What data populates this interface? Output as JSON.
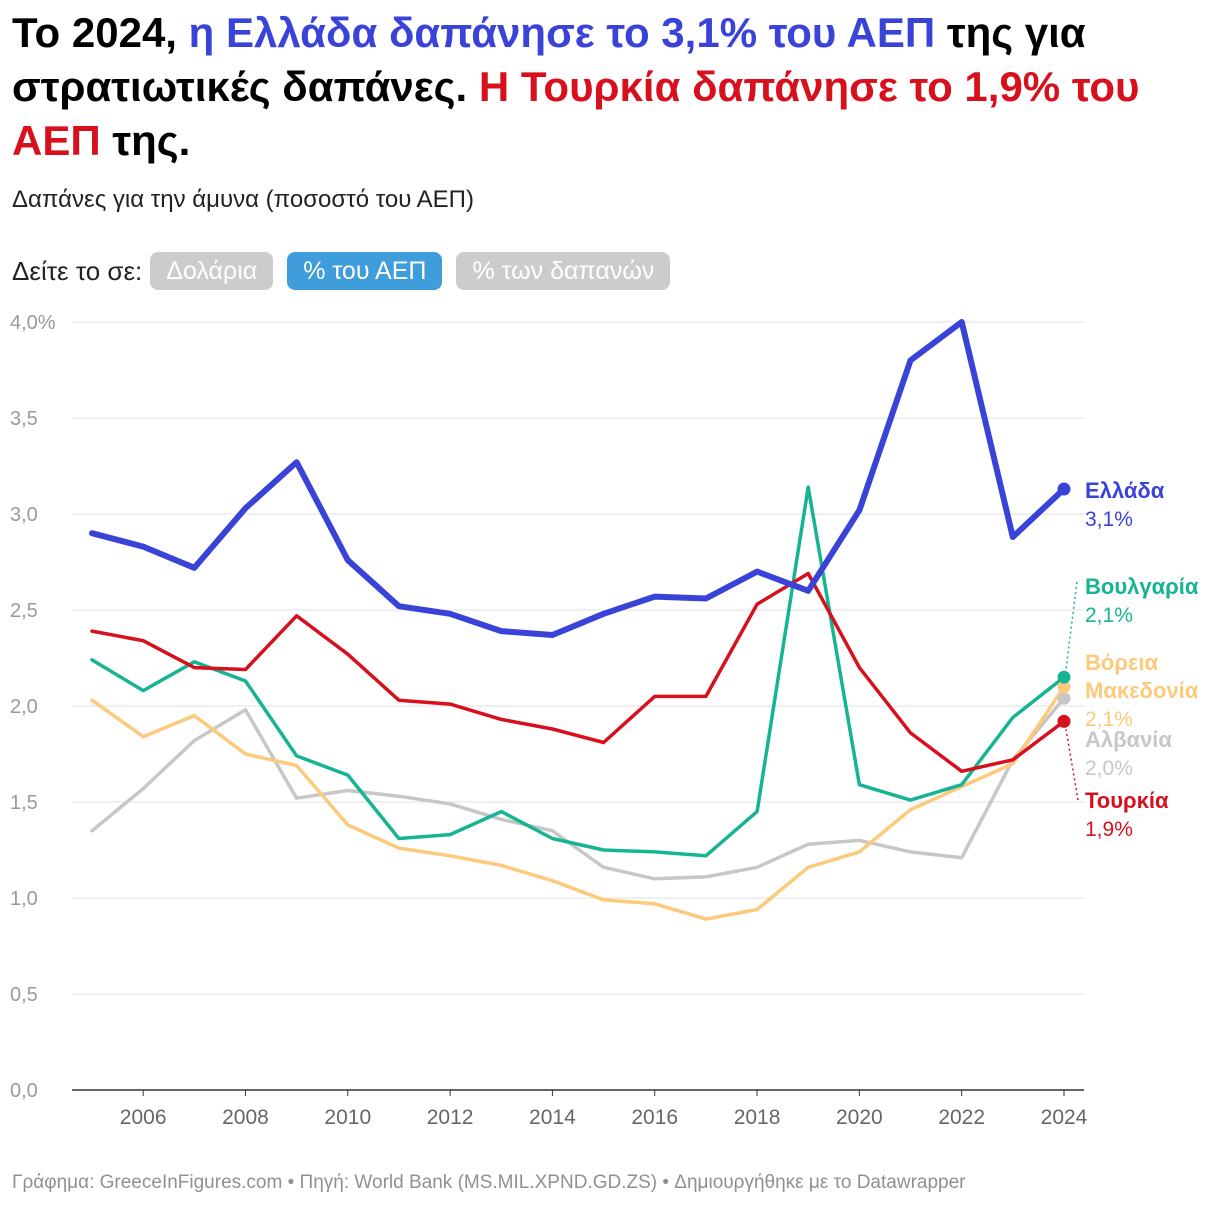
{
  "headline": {
    "part1": "Το 2024, ",
    "part2": "η Ελλάδα δαπάνησε το 3,1% του ΑΕΠ",
    "part3": " της για στρατιωτικές δαπάνες. ",
    "part4": "Η Τουρκία δαπάνησε το 1,9% του ΑΕΠ",
    "part5": " της."
  },
  "subtitle": "Δαπάνες για την άμυνα (ποσοστό του ΑΕΠ)",
  "toggle": {
    "label": "Δείτε το σε:",
    "options": [
      "Δολάρια",
      "% του ΑΕΠ",
      "% των δαπανών"
    ],
    "selected": "% του ΑΕΠ"
  },
  "colors": {
    "greece": "#3a43d8",
    "turkey": "#d8101e",
    "bulgaria": "#17b494",
    "north_macedonia": "#fdc97a",
    "albania": "#c7c7c7",
    "headline_blue": "#3a43d8",
    "headline_red": "#d8101e"
  },
  "chart_data": {
    "type": "line",
    "title": "Δαπάνες για την άμυνα (ποσοστό του ΑΕΠ)",
    "xlabel": "",
    "ylabel": "",
    "x": [
      2005,
      2006,
      2007,
      2008,
      2009,
      2010,
      2011,
      2012,
      2013,
      2014,
      2015,
      2016,
      2017,
      2018,
      2019,
      2020,
      2021,
      2022,
      2023,
      2024
    ],
    "xticks": [
      2006,
      2008,
      2010,
      2012,
      2014,
      2016,
      2018,
      2020,
      2022,
      2024
    ],
    "ylim": [
      0,
      4
    ],
    "yticks": [
      0,
      0.5,
      1.0,
      1.5,
      2.0,
      2.5,
      3.0,
      3.5,
      4.0
    ],
    "ytick_labels": [
      "0,0",
      "0,5",
      "1,0",
      "1,5",
      "2,0",
      "2,5",
      "3,0",
      "3,5",
      "4,0%"
    ],
    "grid": true,
    "series": [
      {
        "key": "albania",
        "name": "Αλβανία",
        "value_label": "2,0%",
        "colorKey": "albania",
        "width": 3.5,
        "values": [
          1.35,
          1.57,
          1.82,
          1.98,
          1.52,
          1.56,
          1.53,
          1.49,
          1.41,
          1.35,
          1.16,
          1.1,
          1.11,
          1.16,
          1.28,
          1.3,
          1.24,
          1.21,
          1.72,
          2.04
        ]
      },
      {
        "key": "north_macedonia",
        "name": "Βόρεια Μακεδονία",
        "name_lines": [
          "Βόρεια",
          "Μακεδονία"
        ],
        "value_label": "2,1%",
        "colorKey": "north_macedonia",
        "width": 3.5,
        "values": [
          2.03,
          1.84,
          1.95,
          1.75,
          1.69,
          1.38,
          1.26,
          1.22,
          1.17,
          1.09,
          0.99,
          0.97,
          0.89,
          0.94,
          1.16,
          1.24,
          1.46,
          1.58,
          1.7,
          2.1
        ]
      },
      {
        "key": "bulgaria",
        "name": "Βουλγαρία",
        "value_label": "2,1%",
        "colorKey": "bulgaria",
        "width": 3.5,
        "values": [
          2.24,
          2.08,
          2.23,
          2.13,
          1.74,
          1.64,
          1.31,
          1.33,
          1.45,
          1.31,
          1.25,
          1.24,
          1.22,
          1.45,
          3.14,
          1.59,
          1.51,
          1.59,
          1.94,
          2.15
        ]
      },
      {
        "key": "turkey",
        "name": "Τουρκία",
        "value_label": "1,9%",
        "colorKey": "turkey",
        "width": 3.5,
        "values": [
          2.39,
          2.34,
          2.2,
          2.19,
          2.47,
          2.27,
          2.03,
          2.01,
          1.93,
          1.88,
          1.81,
          2.05,
          2.05,
          2.53,
          2.69,
          2.2,
          1.86,
          1.66,
          1.72,
          1.92
        ]
      },
      {
        "key": "greece",
        "name": "Ελλάδα",
        "value_label": "3,1%",
        "colorKey": "greece",
        "width": 6,
        "values": [
          2.9,
          2.83,
          2.72,
          3.03,
          3.27,
          2.76,
          2.52,
          2.48,
          2.39,
          2.37,
          2.48,
          2.57,
          2.56,
          2.7,
          2.6,
          3.02,
          3.8,
          4.0,
          2.88,
          3.13
        ]
      }
    ]
  },
  "footer": "Γράφημα: GreeceInFigures.com • Πηγή: World Bank (MS.MIL.XPND.GD.ZS) • Δημιουργήθηκε με το Datawrapper"
}
